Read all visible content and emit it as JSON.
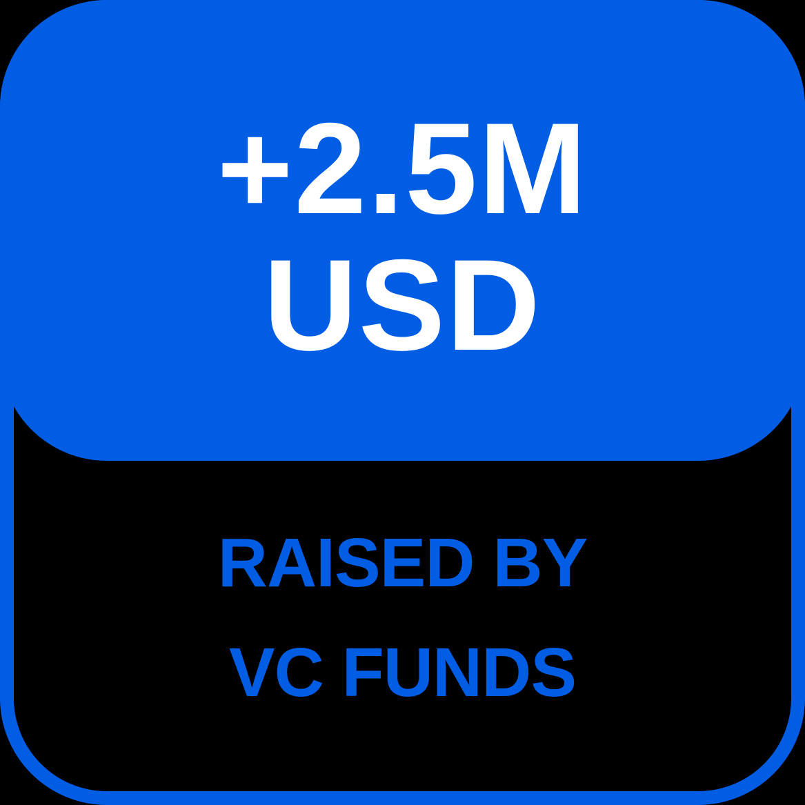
{
  "colors": {
    "accent": "#005de4",
    "background": "#000000",
    "headline_text": "#ffffff"
  },
  "card": {
    "amount_line": "+2.5M",
    "currency_line": "USD",
    "caption_line_1": "RAISED BY",
    "caption_line_2": "VC FUNDS"
  }
}
